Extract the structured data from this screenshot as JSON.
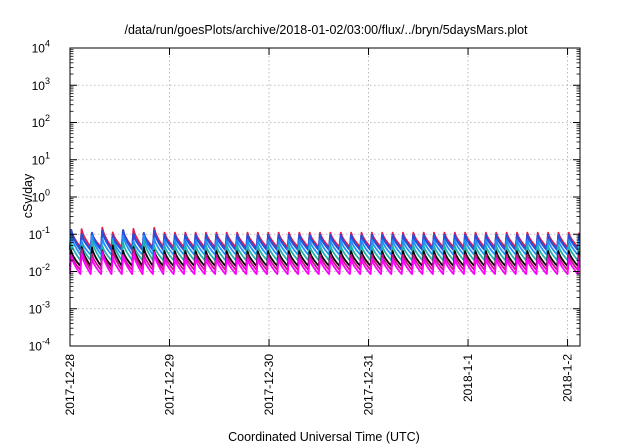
{
  "chart_data": {
    "type": "line",
    "title": "/data/run/goesPlots/archive/2018-01-02/03:00/flux/../bryn/5daysMars.plot",
    "xlabel": "Coordinated Universal Time (UTC)",
    "ylabel": "cSv/day",
    "x_range": [
      "2017-12-28T00:00",
      "2018-01-02T03:00"
    ],
    "x_ticks": [
      "2017-12-28",
      "2017-12-29",
      "2017-12-30",
      "2017-12-31",
      "2018-1-1",
      "2018-1-2"
    ],
    "y_scale": "log",
    "ylim": [
      0.0001,
      10000
    ],
    "y_ticks": [
      {
        "base": "10",
        "exp": "-4"
      },
      {
        "base": "10",
        "exp": "-3"
      },
      {
        "base": "10",
        "exp": "-2"
      },
      {
        "base": "10",
        "exp": "-1"
      },
      {
        "base": "10",
        "exp": "0"
      },
      {
        "base": "10",
        "exp": "1"
      },
      {
        "base": "10",
        "exp": "2"
      },
      {
        "base": "10",
        "exp": "3"
      },
      {
        "base": "10",
        "exp": "4"
      }
    ],
    "grid": true,
    "cycle_period_hours": 2.5,
    "series": [
      {
        "color": "#e8194b",
        "peak": 0.11,
        "trough": 0.045,
        "early_peak": 0.15
      },
      {
        "color": "#2850d8",
        "peak": 0.095,
        "trough": 0.038,
        "early_peak": 0.13
      },
      {
        "color": "#1e90ff",
        "peak": 0.07,
        "trough": 0.028,
        "early_peak": 0.095
      },
      {
        "color": "#20b2aa",
        "peak": 0.05,
        "trough": 0.02,
        "early_peak": 0.07
      },
      {
        "color": "#000000",
        "peak": 0.035,
        "trough": 0.014,
        "early_peak": 0.05
      },
      {
        "color": "#c71585",
        "peak": 0.028,
        "trough": 0.011,
        "early_peak": 0.04
      },
      {
        "color": "#ff00ff",
        "peak": 0.022,
        "trough": 0.0085,
        "early_peak": 0.032
      }
    ]
  }
}
